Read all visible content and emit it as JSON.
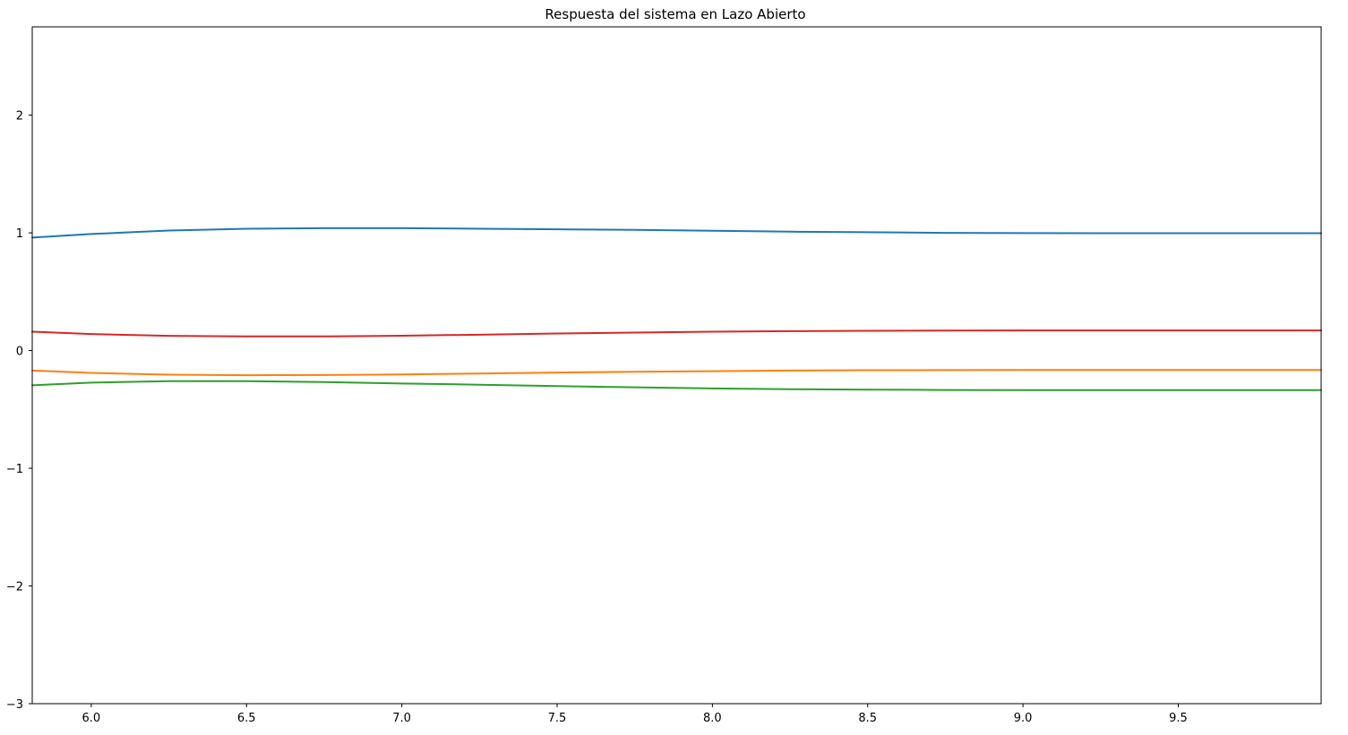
{
  "chart_data": {
    "type": "line",
    "title": "Respuesta del sistema en Lazo Abierto",
    "xlabel": "",
    "ylabel": "",
    "xlim": [
      5.81,
      9.96
    ],
    "ylim": [
      -3.0,
      2.75
    ],
    "x_ticks": [
      6.0,
      6.5,
      7.0,
      7.5,
      8.0,
      8.5,
      9.0,
      9.5
    ],
    "x_tick_labels": [
      "6.0",
      "6.5",
      "7.0",
      "7.5",
      "8.0",
      "8.5",
      "9.0",
      "9.5"
    ],
    "y_ticks": [
      -3,
      -2,
      -1,
      0,
      1,
      2
    ],
    "y_tick_labels": [
      "−3",
      "−2",
      "−1",
      "0",
      "1",
      "2"
    ],
    "grid": false,
    "legend": "none",
    "series": [
      {
        "color": "#1f77b4",
        "x": [
          5.81,
          6.0,
          6.25,
          6.5,
          6.75,
          7.0,
          7.25,
          7.5,
          7.75,
          8.0,
          8.25,
          8.5,
          8.75,
          9.0,
          9.25,
          9.5,
          9.75,
          9.96
        ],
        "y": [
          0.96,
          0.99,
          1.02,
          1.035,
          1.04,
          1.04,
          1.035,
          1.03,
          1.025,
          1.018,
          1.01,
          1.005,
          1.0,
          0.998,
          0.997,
          0.997,
          0.997,
          0.997
        ]
      },
      {
        "color": "#ff7f0e",
        "x": [
          5.81,
          6.0,
          6.25,
          6.5,
          6.75,
          7.0,
          7.25,
          7.5,
          7.75,
          8.0,
          8.25,
          8.5,
          8.75,
          9.0,
          9.25,
          9.5,
          9.75,
          9.96
        ],
        "y": [
          -0.17,
          -0.19,
          -0.205,
          -0.21,
          -0.208,
          -0.203,
          -0.195,
          -0.187,
          -0.18,
          -0.175,
          -0.17,
          -0.167,
          -0.166,
          -0.165,
          -0.165,
          -0.165,
          -0.165,
          -0.165
        ]
      },
      {
        "color": "#2ca02c",
        "x": [
          5.81,
          6.0,
          6.25,
          6.5,
          6.75,
          7.0,
          7.25,
          7.5,
          7.75,
          8.0,
          8.25,
          8.5,
          8.75,
          9.0,
          9.25,
          9.5,
          9.75,
          9.96
        ],
        "y": [
          -0.295,
          -0.272,
          -0.26,
          -0.26,
          -0.268,
          -0.28,
          -0.29,
          -0.302,
          -0.312,
          -0.322,
          -0.328,
          -0.332,
          -0.335,
          -0.336,
          -0.336,
          -0.336,
          -0.336,
          -0.336
        ]
      },
      {
        "color": "#d62728",
        "x": [
          5.81,
          6.0,
          6.25,
          6.5,
          6.75,
          7.0,
          7.25,
          7.5,
          7.75,
          8.0,
          8.25,
          8.5,
          8.75,
          9.0,
          9.25,
          9.5,
          9.75,
          9.96
        ],
        "y": [
          0.16,
          0.14,
          0.125,
          0.12,
          0.12,
          0.126,
          0.135,
          0.145,
          0.153,
          0.16,
          0.165,
          0.168,
          0.17,
          0.171,
          0.171,
          0.171,
          0.171,
          0.171
        ]
      }
    ]
  }
}
